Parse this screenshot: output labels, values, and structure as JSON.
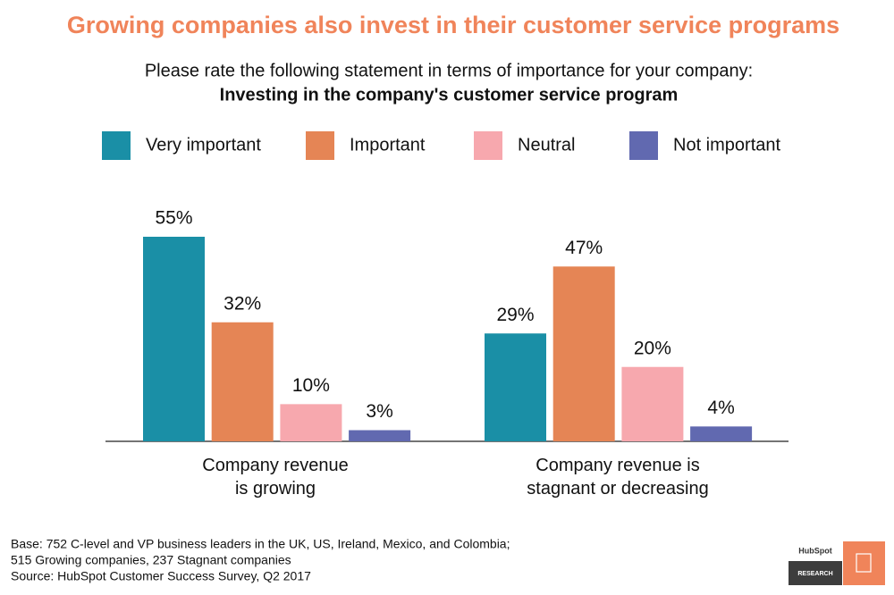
{
  "chart_data": {
    "type": "bar",
    "title": "Growing companies also invest in their customer service programs",
    "subtitle": "Please rate the following statement in terms of importance for your company:",
    "question": "Investing in the company's customer service program",
    "categories": [
      "Company revenue is growing",
      "Company revenue is stagnant or decreasing"
    ],
    "series": [
      {
        "name": "Very important",
        "color": "#1a8fa6",
        "values": [
          55,
          29
        ],
        "value_labels": [
          "55%",
          "29%"
        ]
      },
      {
        "name": "Important",
        "color": "#e58555",
        "values": [
          32,
          47
        ],
        "value_labels": [
          "32%",
          "47%"
        ]
      },
      {
        "name": "Neutral",
        "color": "#f7a8ae",
        "values": [
          10,
          20
        ],
        "value_labels": [
          "10%",
          "20%"
        ]
      },
      {
        "name": "Not important",
        "color": "#6169b0",
        "values": [
          3,
          4
        ],
        "value_labels": [
          "3%",
          "4%"
        ]
      }
    ],
    "footnote": [
      "Base: 752 C-level and VP business leaders in the UK, US, Ireland, Mexico, and Colombia;",
      "515 Growing companies, 237 Stagnant companies",
      "Source: HubSpot Customer Success Survey, Q2 2017"
    ],
    "logo": {
      "brand": "HubSpot",
      "label": "RESEARCH"
    }
  }
}
